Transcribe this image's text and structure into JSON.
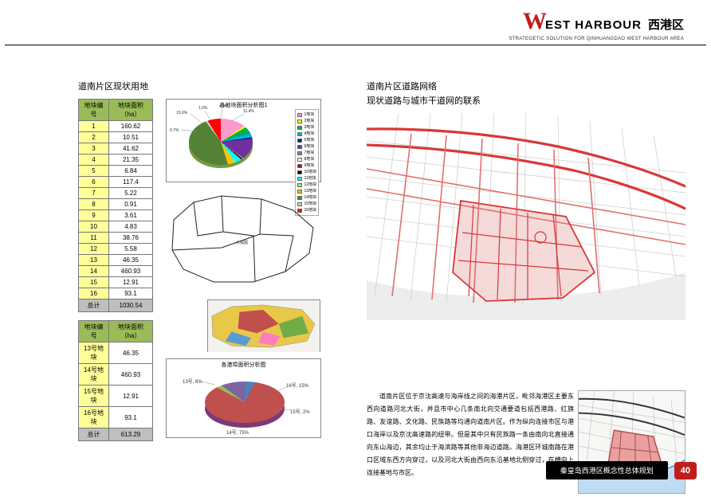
{
  "header": {
    "logo_w": "W",
    "logo_rest": "EST HARBOUR",
    "logo_cn": "西港区",
    "sub": "STRATEGETIC SOLUTION FOR QINHUANGDAO WEST HARBOUR AREA"
  },
  "left": {
    "title": "道南片区现状用地",
    "table1": {
      "header_id": "地块编号",
      "header_area": "地块面积（ha）",
      "rows": [
        {
          "id": "1",
          "val": "160.62"
        },
        {
          "id": "2",
          "val": "10.51"
        },
        {
          "id": "3",
          "val": "41.62"
        },
        {
          "id": "4",
          "val": "21.35"
        },
        {
          "id": "5",
          "val": "6.84"
        },
        {
          "id": "6",
          "val": "117.4"
        },
        {
          "id": "7",
          "val": "5.22"
        },
        {
          "id": "8",
          "val": "0.91"
        },
        {
          "id": "9",
          "val": "3.61"
        },
        {
          "id": "10",
          "val": "4.83"
        },
        {
          "id": "11",
          "val": "38.76"
        },
        {
          "id": "12",
          "val": "5.58"
        },
        {
          "id": "13",
          "val": "46.35"
        },
        {
          "id": "14",
          "val": "460.93"
        },
        {
          "id": "15",
          "val": "12.91"
        },
        {
          "id": "16",
          "val": "93.1"
        }
      ],
      "total_label": "总计",
      "total_val": "1030.54"
    },
    "table2": {
      "header_id": "地块编号",
      "header_area": "地块面积（ha）",
      "rows": [
        {
          "id": "13号地块",
          "val": "46.35"
        },
        {
          "id": "14号地块",
          "val": "460.93"
        },
        {
          "id": "15号地块",
          "val": "12.91"
        },
        {
          "id": "16号地块",
          "val": "93.1"
        }
      ],
      "total_label": "总计",
      "total_val": "613.29"
    },
    "pie1": {
      "title": "各地块面积分析图1",
      "slices": [
        {
          "color": "#ff99cc",
          "pct": 15.6
        },
        {
          "color": "#ffff00",
          "pct": 1.0
        },
        {
          "color": "#00b050",
          "pct": 4.0
        },
        {
          "color": "#00b0f0",
          "pct": 2.1
        },
        {
          "color": "#002060",
          "pct": 0.7
        },
        {
          "color": "#7030a0",
          "pct": 11.4
        },
        {
          "color": "#808080",
          "pct": 0.5
        },
        {
          "color": "#ffffff",
          "pct": 0.1
        },
        {
          "color": "#c00000",
          "pct": 0.4
        },
        {
          "color": "#000000",
          "pct": 0.5
        },
        {
          "color": "#00ffff",
          "pct": 3.8
        },
        {
          "color": "#90ee90",
          "pct": 0.5
        },
        {
          "color": "#ffc000",
          "pct": 4.5
        },
        {
          "color": "#548235",
          "pct": 44.7
        },
        {
          "color": "#d0cece",
          "pct": 1.3
        },
        {
          "color": "#ff0000",
          "pct": 9.0
        }
      ],
      "legend": [
        "1地块",
        "2地块",
        "3地块",
        "4地块",
        "5地块",
        "6地块",
        "7地块",
        "8地块",
        "9地块",
        "10地块",
        "11地块",
        "12地块",
        "13地块",
        "14地块",
        "15地块",
        "16地块"
      ]
    },
    "pie2": {
      "title": "各港埠面积分析图",
      "slices": [
        {
          "color": "#4f81bd",
          "pct": 7.6
        },
        {
          "color": "#c0504d",
          "pct": 75.2
        },
        {
          "color": "#9bbb59",
          "pct": 2.1
        },
        {
          "color": "#8064a2",
          "pct": 15.2
        }
      ],
      "labels": [
        "13号",
        "14号",
        "15号",
        "16号"
      ]
    }
  },
  "right": {
    "title": "道南片区道路网络",
    "sub": "现状道路与城市干道网的联系",
    "paragraph": "道南片区位于京沈高速与海岸线之间的海港片区，毗邻海港区主要东西向道路河北大街，并且市中心几条南北向交通要道包括西港路、红旗路、友谊路、文化路、民族路等均通向道南片区。作为纵向连接市区与港口海岸以及京沈高速路的纽带。但是其中只有民族路一条由南向北直接通向东山海边，其余均止于海滨路等其他非海边道路。海港区环城南路在港口区域东西方向穿过，以及河北大街由西向东沿基地北侧穿过，在横向上连接基地与市区。",
    "road_colors": {
      "main": "#d93838",
      "city": "#e07878",
      "grid": "#cfcfcf",
      "water": "#d9d9d9",
      "fill": "#f5dada"
    },
    "mini": {
      "water": "#5aa0e0",
      "fill": "#e8a0a0",
      "road": "#b04848",
      "grid": "#bbb"
    }
  },
  "footer": {
    "title": "秦皇岛西港区概念性总体规划",
    "page": "40"
  }
}
